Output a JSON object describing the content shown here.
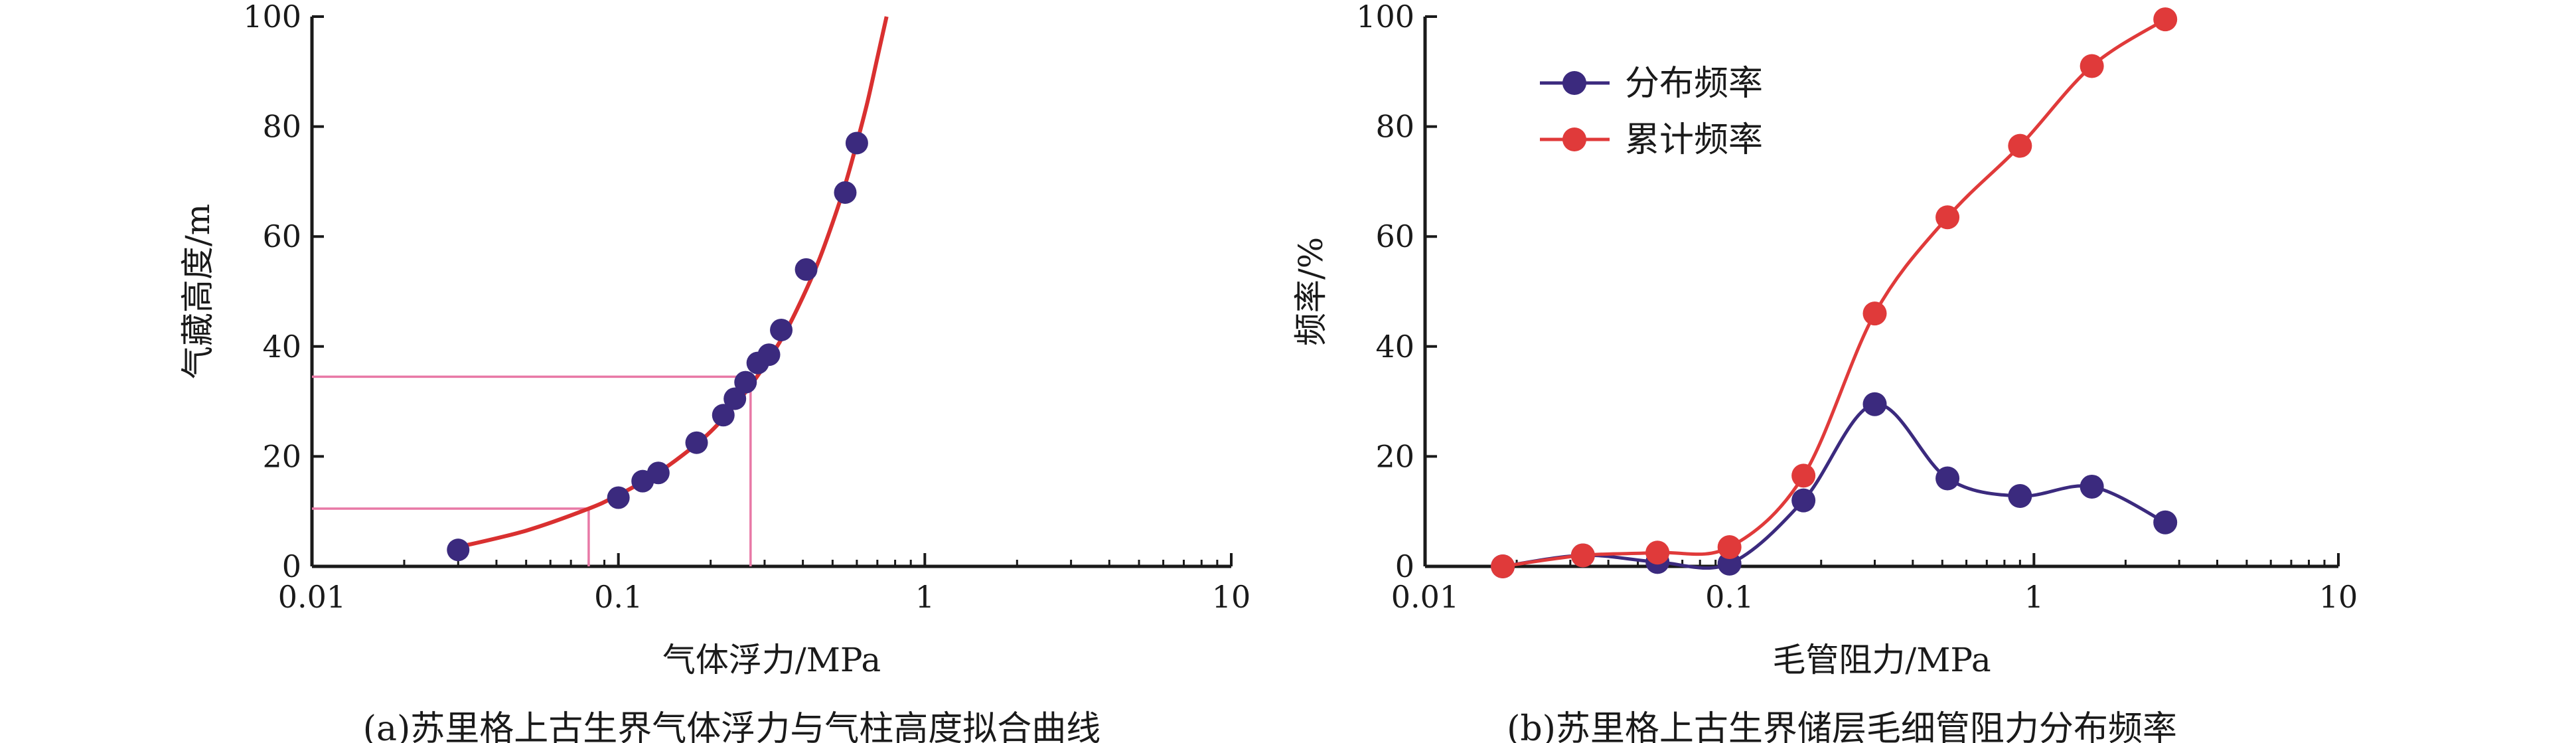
{
  "chart_data": [
    {
      "type": "scatter",
      "title": "",
      "caption": "(a)苏里格上古生界气体浮力与气柱高度拟合曲线",
      "xlabel": "气体浮力/MPa",
      "ylabel": "气藏高度/m",
      "xscale": "log",
      "xlim": [
        0.01,
        10
      ],
      "ylim": [
        0,
        100
      ],
      "xticks": [
        0.01,
        0.1,
        1,
        10
      ],
      "xtick_labels": [
        "0.01",
        "0.1",
        "1",
        "10"
      ],
      "yticks": [
        0,
        20,
        40,
        60,
        80,
        100
      ],
      "ytick_labels": [
        "0",
        "20",
        "40",
        "60",
        "80",
        "100"
      ],
      "grid": false,
      "colors": {
        "points": "#3b2a7e",
        "fit": "#d93030",
        "guides": "#e879a6"
      },
      "points": {
        "x": [
          0.03,
          0.1,
          0.12,
          0.135,
          0.18,
          0.22,
          0.24,
          0.26,
          0.285,
          0.31,
          0.34,
          0.41,
          0.55,
          0.6
        ],
        "y": [
          3,
          12.5,
          15.5,
          17,
          22.5,
          27.5,
          30.5,
          33.5,
          37,
          38.5,
          43,
          54,
          68,
          77
        ]
      },
      "fit_curve": {
        "x": [
          0.03,
          0.05,
          0.08,
          0.1,
          0.13,
          0.16,
          0.2,
          0.25,
          0.3,
          0.35,
          0.4,
          0.45,
          0.5,
          0.55,
          0.6,
          0.65,
          0.7,
          0.75
        ],
        "y": [
          3.5,
          6.5,
          10.5,
          13,
          16.5,
          20,
          24.5,
          30.5,
          36.5,
          42.5,
          49,
          55.5,
          62.5,
          69.5,
          77,
          84.5,
          92.5,
          100
        ]
      },
      "guide_lines": [
        {
          "x": 0.08,
          "y": 10.5
        },
        {
          "x": 0.27,
          "y": 34.5
        }
      ]
    },
    {
      "type": "line",
      "title": "",
      "caption": "(b)苏里格上古生界储层毛细管阻力分布频率",
      "xlabel": "毛管阻力/MPa",
      "ylabel": "频率/%",
      "xscale": "log",
      "xlim": [
        0.01,
        10
      ],
      "ylim": [
        0,
        100
      ],
      "xticks": [
        0.01,
        0.1,
        1,
        10
      ],
      "xtick_labels": [
        "0.01",
        "0.1",
        "1",
        "10"
      ],
      "yticks": [
        0,
        20,
        40,
        60,
        80,
        100
      ],
      "ytick_labels": [
        "0",
        "20",
        "40",
        "60",
        "80",
        "100"
      ],
      "grid": false,
      "legend_position": "top-left",
      "x": [
        0.018,
        0.033,
        0.058,
        0.1,
        0.175,
        0.3,
        0.52,
        0.9,
        1.55,
        2.7
      ],
      "series": [
        {
          "name": "分布频率",
          "color": "#3b2a7e",
          "values": [
            0,
            2,
            0.8,
            0.5,
            12,
            29.5,
            16,
            12.8,
            14.5,
            8
          ]
        },
        {
          "name": "累计频率",
          "color": "#e03a3a",
          "values": [
            0,
            2,
            2.5,
            3.5,
            16.5,
            46,
            63.5,
            76.5,
            91,
            99.5
          ]
        }
      ]
    }
  ]
}
